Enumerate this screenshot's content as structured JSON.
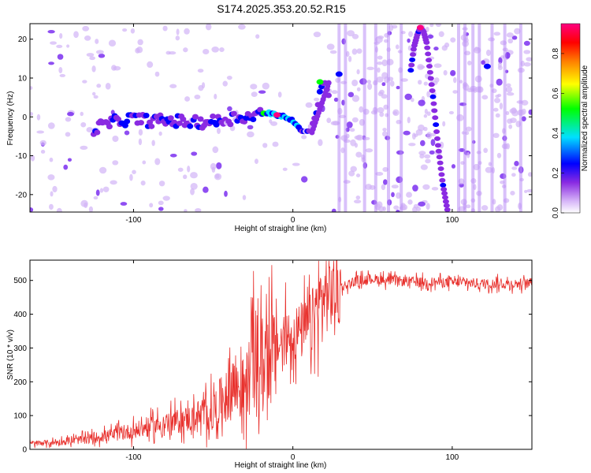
{
  "figure_title": "S174.2025.353.20.52.R15",
  "chart_data": [
    {
      "type": "heatmap",
      "title": "S174.2025.353.20.52.R15",
      "xlabel": "Height of straight line (km)",
      "ylabel": "Frequency (Hz)",
      "xlim": [
        -165,
        150
      ],
      "ylim": [
        -24.5,
        24
      ],
      "x_ticks": [
        -100,
        0,
        100
      ],
      "y_ticks": [
        -20,
        -10,
        0,
        10,
        20
      ],
      "x_tick_labels": [
        "-100",
        "0",
        "100"
      ],
      "y_tick_labels": [
        "-20",
        "-10",
        "0",
        "10",
        "20"
      ],
      "colorbar": {
        "label": "Normalized spectral amplitude",
        "range": [
          0,
          0.95
        ],
        "ticks": [
          0.0,
          0.2,
          0.4,
          0.6,
          0.8
        ],
        "tick_labels": [
          "0.0",
          "0.2",
          "0.4",
          "0.6",
          "0.8"
        ],
        "colors": [
          "#ffffff",
          "#d8b8f8",
          "#8a2be2",
          "#0000ff",
          "#00e0ff",
          "#00ff00",
          "#ffff00",
          "#ff8000",
          "#ff0000",
          "#ff0080"
        ]
      },
      "ridge_track": {
        "x": [
          -125,
          -110,
          -100,
          -90,
          -75,
          -60,
          -45,
          -35,
          -25,
          -20,
          -15,
          -10,
          -5,
          0,
          5,
          10,
          15,
          17,
          20,
          23
        ],
        "y": [
          -3,
          -1,
          -0.5,
          -1,
          -1,
          -1.5,
          -1,
          0,
          0,
          1,
          1,
          0.5,
          0,
          -1,
          -3.5,
          -4,
          1,
          7,
          9,
          5
        ]
      },
      "arc_track": {
        "x": [
          74,
          76,
          78,
          80,
          82,
          84,
          86,
          88,
          91,
          94,
          97
        ],
        "y": [
          12,
          18,
          21,
          23,
          22,
          19,
          12,
          5,
          -7,
          -17,
          -24
        ]
      },
      "bright_spots": [
        {
          "x": 80,
          "y": 23,
          "amplitude": 0.95
        },
        {
          "x": 17,
          "y": 9,
          "amplitude": 0.5
        },
        {
          "x": -10,
          "y": 0.5,
          "amplitude": 0.9
        },
        {
          "x": 29,
          "y": 11,
          "amplitude": 0.35
        },
        {
          "x": 122,
          "y": 13,
          "amplitude": 0.35
        }
      ]
    },
    {
      "type": "line",
      "xlabel": "Height of straight line (km)",
      "ylabel": "SNR (10 * v/v)",
      "xlim": [
        -165,
        150
      ],
      "ylim": [
        0,
        560
      ],
      "x_ticks": [
        -100,
        0,
        100
      ],
      "y_ticks": [
        0,
        100,
        200,
        300,
        400,
        500
      ],
      "x_tick_labels": [
        "-100",
        "0",
        "100"
      ],
      "y_tick_labels": [
        "0",
        "100",
        "200",
        "300",
        "400",
        "500"
      ],
      "series": [
        {
          "name": "SNR",
          "color": "#e8302c",
          "x": [
            -165,
            -150,
            -140,
            -130,
            -120,
            -110,
            -100,
            -90,
            -80,
            -70,
            -60,
            -50,
            -45,
            -40,
            -38,
            -35,
            -30,
            -27,
            -25,
            -22,
            -20,
            -18,
            -15,
            -12,
            -10,
            -5,
            0,
            5,
            10,
            12,
            15,
            20,
            25,
            30,
            35,
            40,
            50,
            60,
            80,
            100,
            120,
            140,
            150
          ],
          "y": [
            18,
            20,
            25,
            30,
            38,
            45,
            55,
            65,
            75,
            85,
            95,
            110,
            140,
            180,
            200,
            190,
            170,
            230,
            300,
            250,
            240,
            280,
            290,
            260,
            300,
            330,
            340,
            350,
            360,
            380,
            420,
            455,
            470,
            480,
            490,
            500,
            505,
            500,
            495,
            495,
            490,
            490,
            492
          ]
        }
      ]
    }
  ]
}
